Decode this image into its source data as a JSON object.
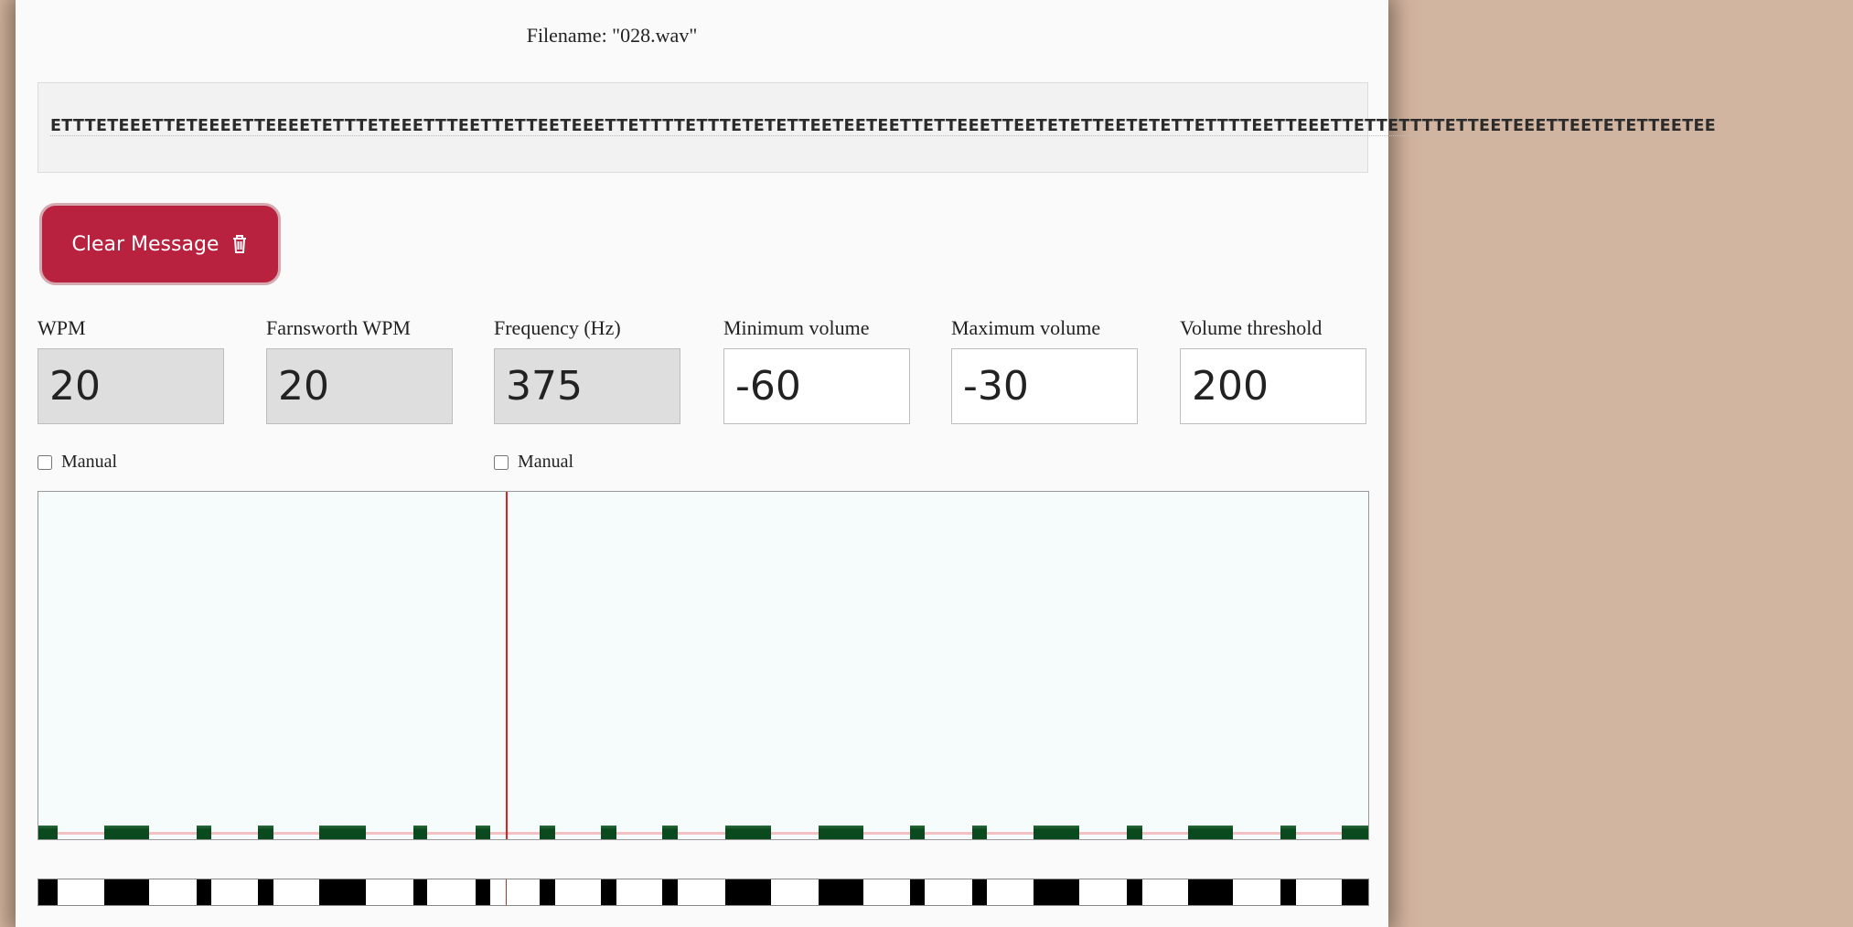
{
  "filename_label": "Filename: \"028.wav\"",
  "message": "ETTTETEEETTETEEEETTEEEETETTTETEEETTTEETTETTEETEEETTETTTTETTTETETETTEETEETEETTETTEEETTEETETETTEETETETTETTTTEETTEEETTETTETTTTETTEETEEETTEETETETTEETEE",
  "clear_button": {
    "label": "Clear Message",
    "icon": "trash-icon",
    "color": "#b9223f"
  },
  "fields": [
    {
      "label": "WPM",
      "value": "20",
      "disabled": true
    },
    {
      "label": "Farnsworth WPM",
      "value": "20",
      "disabled": true
    },
    {
      "label": "Frequency (Hz)",
      "value": "375",
      "disabled": true
    },
    {
      "label": "Minimum volume",
      "value": "-60",
      "disabled": false
    },
    {
      "label": "Maximum volume",
      "value": "-30",
      "disabled": false
    },
    {
      "label": "Volume threshold",
      "value": "200",
      "disabled": false
    }
  ],
  "checkboxes": [
    {
      "label": "Manual",
      "checked": false
    },
    {
      "label": "Manual",
      "checked": false
    }
  ],
  "colors": {
    "signal": "#0b4a1e",
    "cursor": "#e02020",
    "threshold": "#f3c1c4"
  }
}
